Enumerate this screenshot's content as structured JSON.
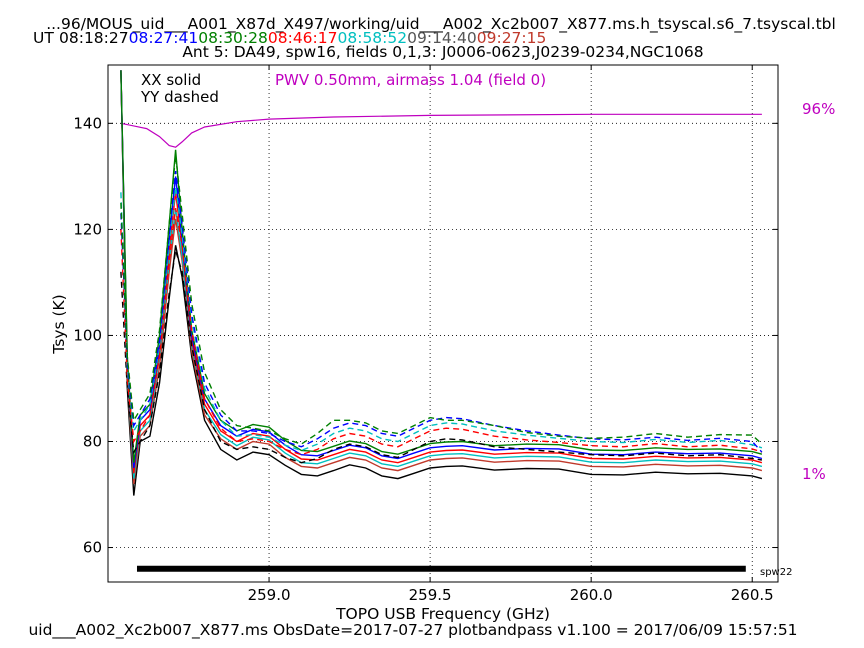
{
  "header": {
    "title": "...96/MOUS_uid___A001_X87d_X497/working/uid___A002_Xc2b007_X877.ms.h_tsyscal.s6_7.tsyscal.tbl",
    "ut_label": "UT",
    "times": [
      {
        "text": "08:18:27",
        "color": "#000000"
      },
      {
        "text": "08:27:41",
        "color": "#0000ff"
      },
      {
        "text": "08:30:28",
        "color": "#008000"
      },
      {
        "text": "08:46:17",
        "color": "#ff0000"
      },
      {
        "text": "08:58:52",
        "color": "#00bfbf"
      },
      {
        "text": "09:14:40",
        "color": "#555555"
      },
      {
        "text": "09:27:15",
        "color": "#c0392b"
      }
    ],
    "subtitle": "Ant 5: DA49,  spw16,  fields 0,1,3: J0006-0623,J0239-0234,NGC1068"
  },
  "legend": {
    "solid": "XX solid",
    "dashed": "YY dashed"
  },
  "pwv_label": "PWV 0.50mm, airmass 1.04 (field 0)",
  "right_labels": {
    "top": "96%",
    "bottom": "1%"
  },
  "spw_label": "spw22",
  "footer": "uid___A002_Xc2b007_X877.ms  ObsDate=2017-07-27   plotbandpass v1.100 = 2017/06/09 15:57:51",
  "colors": {
    "pwv": "#bf00bf"
  },
  "chart_data": {
    "type": "line",
    "xlabel": "TOPO USB Frequency (GHz)",
    "ylabel": "Tsys (K)",
    "xlim": [
      258.5,
      260.58
    ],
    "ylim": [
      53.5,
      151
    ],
    "xticks": [
      259.0,
      259.5,
      260.0,
      260.5
    ],
    "xtick_labels": [
      "259.0",
      "259.5",
      "260.0",
      "260.5"
    ],
    "yticks": [
      60,
      80,
      100,
      120,
      140
    ],
    "ytick_labels": [
      "60",
      "80",
      "100",
      "120",
      "140"
    ],
    "grid": true,
    "spw_bar": {
      "x": [
        258.59,
        260.48
      ],
      "y": 56.0
    },
    "reference_curve": {
      "name": "transmission",
      "x": [
        258.54,
        258.62,
        258.66,
        258.69,
        258.71,
        258.73,
        258.76,
        258.8,
        258.9,
        259.0,
        259.2,
        259.5,
        260.0,
        260.53
      ],
      "y": [
        140.0,
        139.0,
        137.5,
        135.8,
        135.5,
        136.5,
        138.2,
        139.3,
        140.3,
        140.8,
        141.2,
        141.5,
        141.7,
        141.7
      ]
    },
    "series": [
      {
        "pol": "XX",
        "color": "#000000",
        "dashed": false,
        "x": [
          258.54,
          258.56,
          258.58,
          258.6,
          258.63,
          258.66,
          258.69,
          258.71,
          258.73,
          258.76,
          258.8,
          258.85,
          258.9,
          258.95,
          259.0,
          259.05,
          259.1,
          259.15,
          259.2,
          259.25,
          259.3,
          259.35,
          259.4,
          259.45,
          259.5,
          259.55,
          259.6,
          259.7,
          259.8,
          259.9,
          260.0,
          260.1,
          260.2,
          260.3,
          260.4,
          260.5,
          260.53
        ],
        "y": [
          150,
          90,
          69.8,
          80,
          81,
          91,
          107,
          117,
          111,
          96,
          84,
          78.5,
          76.5,
          78,
          77.5,
          75.5,
          73.8,
          73.5,
          74.5,
          75.6,
          75,
          73.5,
          73,
          74,
          75,
          75.3,
          75.4,
          74.6,
          74.9,
          74.8,
          73.8,
          73.7,
          74.2,
          73.9,
          74,
          73.5,
          73
        ]
      },
      {
        "pol": "XX",
        "color": "#c0392b",
        "dashed": false,
        "x": [
          258.54,
          258.56,
          258.58,
          258.6,
          258.63,
          258.66,
          258.69,
          258.71,
          258.73,
          258.76,
          258.8,
          258.85,
          258.9,
          258.95,
          259.0,
          259.05,
          259.1,
          259.15,
          259.2,
          259.25,
          259.3,
          259.35,
          259.4,
          259.45,
          259.5,
          259.55,
          259.6,
          259.7,
          259.8,
          259.9,
          260.0,
          260.1,
          260.2,
          260.3,
          260.4,
          260.5,
          260.53
        ],
        "y": [
          150,
          92,
          72,
          81,
          83,
          94,
          112,
          122,
          114,
          97,
          85,
          80.5,
          78.5,
          80,
          79.5,
          77,
          75.3,
          75,
          76,
          77,
          76.5,
          75,
          74.5,
          75.5,
          76.5,
          76.8,
          76.9,
          76.1,
          76.4,
          76.3,
          75.3,
          75.2,
          75.7,
          75.4,
          75.5,
          75,
          74.5
        ]
      },
      {
        "pol": "XX",
        "color": "#00bfbf",
        "dashed": false,
        "x": [
          258.54,
          258.56,
          258.58,
          258.6,
          258.63,
          258.66,
          258.69,
          258.71,
          258.73,
          258.76,
          258.8,
          258.85,
          258.9,
          258.95,
          259.0,
          259.05,
          259.1,
          259.15,
          259.2,
          259.25,
          259.3,
          259.35,
          259.4,
          259.45,
          259.5,
          259.55,
          259.6,
          259.7,
          259.8,
          259.9,
          260.0,
          260.1,
          260.2,
          260.3,
          260.4,
          260.5,
          260.53
        ],
        "y": [
          150,
          93,
          73,
          82,
          84,
          96,
          114,
          124,
          115,
          98,
          86,
          81.3,
          79.2,
          80.8,
          80.3,
          77.8,
          76,
          75.8,
          76.8,
          77.8,
          77.3,
          75.8,
          75.3,
          76.3,
          77.3,
          77.6,
          77.7,
          76.9,
          77.2,
          77.1,
          76.1,
          76,
          76.5,
          76.2,
          76.3,
          75.8,
          75.3
        ]
      },
      {
        "pol": "XX",
        "color": "#ff0000",
        "dashed": false,
        "x": [
          258.54,
          258.56,
          258.58,
          258.6,
          258.63,
          258.66,
          258.69,
          258.71,
          258.73,
          258.76,
          258.8,
          258.85,
          258.9,
          258.95,
          259.0,
          259.05,
          259.1,
          259.15,
          259.2,
          259.25,
          259.3,
          259.35,
          259.4,
          259.45,
          259.5,
          259.55,
          259.6,
          259.7,
          259.8,
          259.9,
          260.0,
          260.1,
          260.2,
          260.3,
          260.4,
          260.5,
          260.53
        ],
        "y": [
          150,
          94,
          74,
          83,
          85,
          97,
          116,
          127,
          117,
          99,
          87,
          82,
          80,
          81.5,
          81,
          78.5,
          76.7,
          76.5,
          77.5,
          78.5,
          78,
          76.5,
          76,
          77,
          78,
          78.3,
          78.4,
          77.6,
          77.9,
          77.8,
          76.8,
          76.7,
          77.2,
          76.9,
          77,
          76.5,
          76
        ]
      },
      {
        "pol": "XX",
        "color": "#0000ff",
        "dashed": false,
        "x": [
          258.54,
          258.56,
          258.58,
          258.6,
          258.63,
          258.66,
          258.69,
          258.71,
          258.73,
          258.76,
          258.8,
          258.85,
          258.9,
          258.95,
          259.0,
          259.05,
          259.1,
          259.15,
          259.2,
          259.25,
          259.3,
          259.35,
          259.4,
          259.45,
          259.5,
          259.55,
          259.6,
          259.7,
          259.8,
          259.9,
          260.0,
          260.1,
          260.2,
          260.3,
          260.4,
          260.5,
          260.53
        ],
        "y": [
          150,
          95,
          75,
          84,
          86,
          98,
          118,
          130,
          118,
          100,
          88,
          83,
          81,
          82.3,
          81.8,
          79.3,
          77.5,
          77.3,
          78.3,
          79.3,
          78.8,
          77.3,
          76.8,
          77.8,
          78.8,
          79.1,
          79.2,
          78.4,
          78.7,
          78.6,
          77.6,
          77.5,
          78,
          77.7,
          77.8,
          77.3,
          76.8
        ]
      },
      {
        "pol": "XX",
        "color": "#008000",
        "dashed": false,
        "x": [
          258.54,
          258.56,
          258.58,
          258.6,
          258.63,
          258.66,
          258.69,
          258.71,
          258.73,
          258.76,
          258.8,
          258.85,
          258.9,
          258.95,
          259.0,
          259.05,
          259.1,
          259.15,
          259.2,
          259.25,
          259.3,
          259.35,
          259.4,
          259.45,
          259.5,
          259.55,
          259.6,
          259.7,
          259.8,
          259.9,
          260.0,
          260.1,
          260.2,
          260.3,
          260.4,
          260.5,
          260.53
        ],
        "y": [
          150,
          96,
          76,
          85,
          87,
          100,
          121,
          135,
          120,
          101,
          89,
          84,
          82,
          83.2,
          82.7,
          80.2,
          78.3,
          78.1,
          79.1,
          80.1,
          79.6,
          78.1,
          77.6,
          78.6,
          79.6,
          79.9,
          80,
          79.2,
          79.5,
          79.4,
          78.4,
          78.3,
          78.8,
          78.5,
          78.6,
          78.1,
          77.6
        ]
      },
      {
        "pol": "YY",
        "color": "#000000",
        "dashed": true,
        "x": [
          258.54,
          258.56,
          258.58,
          258.6,
          258.63,
          258.66,
          258.69,
          258.71,
          258.73,
          258.76,
          258.8,
          258.85,
          258.9,
          258.95,
          259.0,
          259.05,
          259.1,
          259.15,
          259.2,
          259.25,
          259.3,
          259.35,
          259.4,
          259.45,
          259.5,
          259.55,
          259.6,
          259.7,
          259.8,
          259.9,
          260.0,
          260.1,
          260.2,
          260.3,
          260.4,
          260.5,
          260.53
        ],
        "y": [
          112,
          90,
          78,
          80,
          83,
          93,
          108,
          116,
          112,
          98,
          86,
          80,
          78.5,
          79,
          78.5,
          77,
          76,
          76.8,
          78.5,
          79.5,
          79,
          77.5,
          77,
          78.5,
          80,
          80.5,
          80.3,
          79,
          78.5,
          78,
          77.5,
          77.3,
          77.8,
          77.3,
          77.5,
          76.8,
          76.5
        ]
      },
      {
        "pol": "YY",
        "color": "#ff0000",
        "dashed": true,
        "x": [
          258.54,
          258.56,
          258.58,
          258.6,
          258.63,
          258.66,
          258.69,
          258.71,
          258.73,
          258.76,
          258.8,
          258.85,
          258.9,
          258.95,
          259.0,
          259.05,
          259.1,
          259.15,
          259.2,
          259.25,
          259.3,
          259.35,
          259.4,
          259.45,
          259.5,
          259.55,
          259.6,
          259.7,
          259.8,
          259.9,
          260.0,
          260.1,
          260.2,
          260.3,
          260.4,
          260.5,
          260.53
        ],
        "y": [
          120,
          92,
          80,
          82,
          85,
          96,
          114,
          124,
          117,
          101,
          88,
          82.5,
          80,
          80.5,
          80,
          78.5,
          77.5,
          78.5,
          80.5,
          81.5,
          81,
          79.5,
          79,
          80.5,
          82,
          82.5,
          82.3,
          81,
          80.3,
          79.8,
          79.2,
          79,
          79.6,
          79,
          79.3,
          78.6,
          78
        ]
      },
      {
        "pol": "YY",
        "color": "#00bfbf",
        "dashed": true,
        "x": [
          258.54,
          258.56,
          258.58,
          258.6,
          258.63,
          258.66,
          258.69,
          258.71,
          258.73,
          258.76,
          258.8,
          258.85,
          258.9,
          258.95,
          259.0,
          259.05,
          259.1,
          259.15,
          259.2,
          259.25,
          259.3,
          259.35,
          259.4,
          259.45,
          259.5,
          259.55,
          259.6,
          259.7,
          259.8,
          259.9,
          260.0,
          260.1,
          260.2,
          260.3,
          260.4,
          260.5,
          260.53
        ],
        "y": [
          127,
          94,
          82,
          84,
          87,
          98,
          117,
          128,
          119,
          103,
          90,
          84,
          81,
          81.3,
          80.8,
          79.3,
          78.3,
          79.5,
          81.5,
          82.5,
          82,
          80.5,
          80,
          81.5,
          83,
          83.5,
          83.3,
          82,
          81.2,
          80.6,
          80,
          79.8,
          80.4,
          79.8,
          80.2,
          79.4,
          78.8
        ]
      },
      {
        "pol": "YY",
        "color": "#0000ff",
        "dashed": true,
        "x": [
          258.54,
          258.56,
          258.58,
          258.6,
          258.63,
          258.66,
          258.69,
          258.71,
          258.73,
          258.76,
          258.8,
          258.85,
          258.9,
          258.95,
          259.0,
          259.05,
          259.1,
          259.15,
          259.2,
          259.25,
          259.3,
          259.35,
          259.4,
          259.45,
          259.5,
          259.55,
          259.6,
          259.7,
          259.8,
          259.9,
          260.0,
          260.1,
          260.2,
          260.3,
          260.4,
          260.5,
          260.53
        ],
        "y": [
          123,
          95,
          83,
          85,
          88,
          99,
          119,
          131,
          121,
          104,
          91,
          85,
          82,
          82,
          81.5,
          80,
          79,
          80.5,
          82.5,
          83.5,
          83,
          81.5,
          81,
          82.5,
          84,
          84.5,
          84.3,
          83,
          82,
          81.2,
          80.5,
          80.3,
          80.8,
          80.2,
          80.6,
          80,
          78
        ]
      },
      {
        "pol": "YY",
        "color": "#008000",
        "dashed": true,
        "x": [
          258.54,
          258.56,
          258.58,
          258.6,
          258.63,
          258.66,
          258.69,
          258.71,
          258.73,
          258.76,
          258.8,
          258.85,
          258.9,
          258.95,
          259.0,
          259.05,
          259.1,
          259.15,
          259.2,
          259.25,
          259.3,
          259.35,
          259.4,
          259.45,
          259.5,
          259.55,
          259.6,
          259.7,
          259.8,
          259.9,
          260.0,
          260.1,
          260.2,
          260.3,
          260.4,
          260.5,
          260.53
        ],
        "y": [
          125,
          96,
          84,
          86,
          89,
          101,
          121,
          134,
          123,
          106,
          93,
          86,
          83,
          82.5,
          82,
          80.5,
          79.5,
          81.5,
          84,
          84,
          83.5,
          82,
          81.5,
          83,
          84.5,
          84,
          84,
          83,
          81.7,
          81,
          80.6,
          80.8,
          81.5,
          80.8,
          81.3,
          81.2,
          79.5
        ]
      }
    ]
  }
}
